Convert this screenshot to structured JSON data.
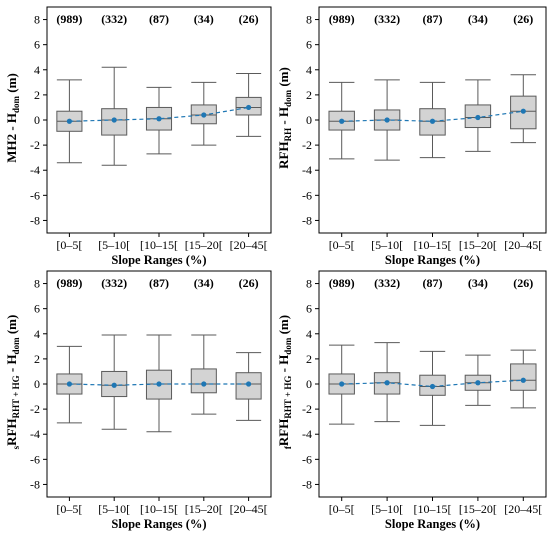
{
  "chart_data": [
    {
      "type": "box",
      "ylabel": {
        "pre": "",
        "pre_sub": "",
        "main": "MH2 - H",
        "sub": "dom",
        "post": " (m)"
      },
      "xlabel": "Slope Ranges (%)",
      "categories": [
        "[0–5[",
        "[5–10[",
        "[10–15[",
        "[15–20[",
        "[20–45["
      ],
      "counts": [
        "(989)",
        "(332)",
        "(87)",
        "(34)",
        "(26)"
      ],
      "ylim": [
        -9,
        9
      ],
      "yticks": [
        -8,
        -6,
        -4,
        -2,
        0,
        2,
        4,
        6,
        8
      ],
      "boxes": [
        {
          "whisker_low": -3.4,
          "q1": -0.9,
          "median": -0.1,
          "q3": 0.7,
          "whisker_high": 3.2,
          "mean": -0.1
        },
        {
          "whisker_low": -3.6,
          "q1": -1.2,
          "median": 0.0,
          "q3": 0.9,
          "whisker_high": 4.2,
          "mean": 0.0
        },
        {
          "whisker_low": -2.7,
          "q1": -0.8,
          "median": 0.1,
          "q3": 1.0,
          "whisker_high": 2.6,
          "mean": 0.1
        },
        {
          "whisker_low": -2.0,
          "q1": -0.3,
          "median": 0.4,
          "q3": 1.2,
          "whisker_high": 3.0,
          "mean": 0.4
        },
        {
          "whisker_low": -1.3,
          "q1": 0.4,
          "median": 1.0,
          "q3": 1.8,
          "whisker_high": 3.7,
          "mean": 1.0
        }
      ]
    },
    {
      "type": "box",
      "ylabel": {
        "pre": "",
        "pre_sub": "",
        "main": "RFH",
        "sub": "RH",
        "post": " - H",
        "post_sub": "dom",
        "tail": " (m)"
      },
      "xlabel": "Slope Ranges (%)",
      "categories": [
        "[0–5[",
        "[5–10[",
        "[10–15[",
        "[15–20[",
        "[20–45["
      ],
      "counts": [
        "(989)",
        "(332)",
        "(87)",
        "(34)",
        "(26)"
      ],
      "ylim": [
        -9,
        9
      ],
      "yticks": [
        -8,
        -6,
        -4,
        -2,
        0,
        2,
        4,
        6,
        8
      ],
      "boxes": [
        {
          "whisker_low": -3.1,
          "q1": -0.8,
          "median": -0.1,
          "q3": 0.7,
          "whisker_high": 3.0,
          "mean": -0.1
        },
        {
          "whisker_low": -3.2,
          "q1": -0.8,
          "median": 0.0,
          "q3": 0.8,
          "whisker_high": 3.2,
          "mean": 0.0
        },
        {
          "whisker_low": -3.0,
          "q1": -1.2,
          "median": -0.1,
          "q3": 0.9,
          "whisker_high": 3.0,
          "mean": -0.1
        },
        {
          "whisker_low": -2.5,
          "q1": -0.6,
          "median": 0.2,
          "q3": 1.2,
          "whisker_high": 3.2,
          "mean": 0.2
        },
        {
          "whisker_low": -1.8,
          "q1": -0.7,
          "median": 0.7,
          "q3": 1.9,
          "whisker_high": 3.6,
          "mean": 0.7
        }
      ]
    },
    {
      "type": "box",
      "ylabel": {
        "pre": "",
        "pre_sub": "s",
        "main": "RFH",
        "sub": "RHT + HG",
        "post": " - H",
        "post_sub": "dom",
        "tail": " (m)"
      },
      "xlabel": "Slope Ranges (%)",
      "categories": [
        "[0–5[",
        "[5–10[",
        "[10–15[",
        "[15–20[",
        "[20–45["
      ],
      "counts": [
        "(989)",
        "(332)",
        "(87)",
        "(34)",
        "(26)"
      ],
      "ylim": [
        -9,
        9
      ],
      "yticks": [
        -8,
        -6,
        -4,
        -2,
        0,
        2,
        4,
        6,
        8
      ],
      "boxes": [
        {
          "whisker_low": -3.1,
          "q1": -0.8,
          "median": 0.0,
          "q3": 0.8,
          "whisker_high": 3.0,
          "mean": 0.0
        },
        {
          "whisker_low": -3.6,
          "q1": -1.0,
          "median": -0.1,
          "q3": 1.0,
          "whisker_high": 3.9,
          "mean": -0.1
        },
        {
          "whisker_low": -3.8,
          "q1": -1.2,
          "median": 0.0,
          "q3": 1.1,
          "whisker_high": 3.9,
          "mean": 0.0
        },
        {
          "whisker_low": -2.4,
          "q1": -0.7,
          "median": 0.0,
          "q3": 1.2,
          "whisker_high": 3.9,
          "mean": 0.0
        },
        {
          "whisker_low": -2.9,
          "q1": -1.2,
          "median": 0.0,
          "q3": 0.9,
          "whisker_high": 2.5,
          "mean": 0.0
        }
      ]
    },
    {
      "type": "box",
      "ylabel": {
        "pre": "",
        "pre_sub": "f",
        "main": "RFH",
        "sub": "RHT + HG",
        "post": " - H",
        "post_sub": "dom",
        "tail": " (m)"
      },
      "xlabel": "Slope Ranges (%)",
      "categories": [
        "[0–5[",
        "[5–10[",
        "[10–15[",
        "[15–20[",
        "[20–45["
      ],
      "counts": [
        "(989)",
        "(332)",
        "(87)",
        "(34)",
        "(26)"
      ],
      "ylim": [
        -9,
        9
      ],
      "yticks": [
        -8,
        -6,
        -4,
        -2,
        0,
        2,
        4,
        6,
        8
      ],
      "boxes": [
        {
          "whisker_low": -3.2,
          "q1": -0.8,
          "median": 0.0,
          "q3": 0.8,
          "whisker_high": 3.1,
          "mean": 0.0
        },
        {
          "whisker_low": -3.0,
          "q1": -0.8,
          "median": 0.1,
          "q3": 0.9,
          "whisker_high": 3.3,
          "mean": 0.1
        },
        {
          "whisker_low": -3.3,
          "q1": -0.9,
          "median": -0.2,
          "q3": 0.7,
          "whisker_high": 2.6,
          "mean": -0.2
        },
        {
          "whisker_low": -1.7,
          "q1": -0.5,
          "median": 0.1,
          "q3": 0.7,
          "whisker_high": 2.3,
          "mean": 0.1
        },
        {
          "whisker_low": -1.9,
          "q1": -0.5,
          "median": 0.3,
          "q3": 1.6,
          "whisker_high": 2.7,
          "mean": 0.3
        }
      ]
    }
  ],
  "colors": {
    "box_fill": "#d3d3d3",
    "box_stroke": "#5a5a5a",
    "mean_marker": "#1f77b4",
    "mean_line": "#1f77b4",
    "frame": "#000000"
  }
}
